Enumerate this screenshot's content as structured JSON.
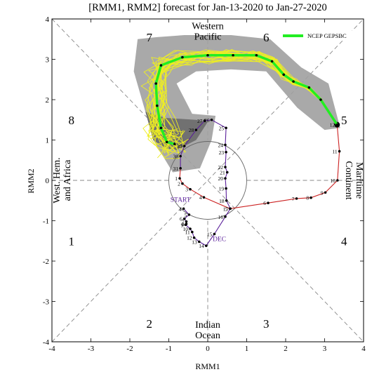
{
  "chart_data": {
    "type": "scatter",
    "title": "[RMM1, RMM2] forecast for Jan-13-2020 to Jan-27-2020",
    "xlabel": "RMM1",
    "ylabel": "RMM2",
    "xlim": [
      -4,
      4
    ],
    "ylim": [
      -4,
      4
    ],
    "x_ticks": [
      "-4",
      "-3",
      "-2",
      "-1",
      "0",
      "1",
      "2",
      "3",
      "4"
    ],
    "y_ticks": [
      "-4",
      "-3",
      "-2",
      "-1",
      "0",
      "1",
      "2",
      "3",
      "4"
    ],
    "phase_numbers": [
      {
        "label": "1",
        "x": -3.5,
        "y": -1.5
      },
      {
        "label": "2",
        "x": -1.5,
        "y": -3.55
      },
      {
        "label": "3",
        "x": 1.5,
        "y": -3.55
      },
      {
        "label": "4",
        "x": 3.5,
        "y": -1.5
      },
      {
        "label": "5",
        "x": 3.5,
        "y": 1.5
      },
      {
        "label": "6",
        "x": 1.5,
        "y": 3.55
      },
      {
        "label": "7",
        "x": -1.5,
        "y": 3.55
      },
      {
        "label": "8",
        "x": -3.5,
        "y": 1.5
      }
    ],
    "regions": {
      "western_pacific": [
        "Western",
        "Pacific"
      ],
      "indian_ocean": [
        "Indian",
        "Ocean"
      ],
      "maritime_continent": [
        "Maritime",
        "Continent"
      ],
      "west_hem_africa": [
        "West. Hem.",
        "and Africa"
      ]
    },
    "legend": {
      "label": "NCEP GEPSBC",
      "position": "top-right",
      "color": "#22ee22"
    },
    "colors": {
      "observed_dec": "#5a1f9a",
      "observed_jan": "#cc2222",
      "ensemble_member": "#eeee22",
      "spread_outer": "#a0a0a0",
      "spread_inner": "#6a6a6a",
      "ensemble_mean": "#22ee22",
      "forecast_markers": "#000000"
    },
    "month_labels": [
      {
        "label": "START",
        "x": -0.7,
        "y": -0.53
      },
      {
        "label": "DEC",
        "x": 0.3,
        "y": -1.5
      }
    ],
    "observed": {
      "dec": [
        {
          "day": "4",
          "x": -0.62,
          "y": -0.7
        },
        {
          "day": "5",
          "x": -0.48,
          "y": -0.85
        },
        {
          "day": "6",
          "x": -0.6,
          "y": -0.95
        },
        {
          "day": "7",
          "x": -0.55,
          "y": -1.02
        },
        {
          "day": "8",
          "x": -0.55,
          "y": -1.08
        },
        {
          "day": "9",
          "x": -0.57,
          "y": -1.1
        },
        {
          "day": "10",
          "x": -0.45,
          "y": -1.2
        },
        {
          "day": "11",
          "x": -0.4,
          "y": -1.28
        },
        {
          "day": "12",
          "x": -0.35,
          "y": -1.42
        },
        {
          "day": "13",
          "x": -0.22,
          "y": -1.52
        },
        {
          "day": "14",
          "x": -0.04,
          "y": -1.62
        },
        {
          "day": "15",
          "x": 0.17,
          "y": -1.33
        },
        {
          "day": "16",
          "x": 0.45,
          "y": -0.9
        },
        {
          "day": "17",
          "x": 0.58,
          "y": -0.7
        },
        {
          "day": "18",
          "x": 0.48,
          "y": -0.5
        },
        {
          "day": "19",
          "x": 0.47,
          "y": -0.2
        },
        {
          "day": "20",
          "x": 0.45,
          "y": 0.05
        },
        {
          "day": "21",
          "x": 0.5,
          "y": 0.2
        },
        {
          "day": "22",
          "x": 0.45,
          "y": 0.33
        },
        {
          "day": "23",
          "x": 0.47,
          "y": 0.7
        },
        {
          "day": "24",
          "x": 0.45,
          "y": 0.88
        },
        {
          "day": "25",
          "x": 0.47,
          "y": 1.3
        },
        {
          "day": "26",
          "x": 0.1,
          "y": 1.5
        },
        {
          "day": "27",
          "x": -0.08,
          "y": 1.48
        },
        {
          "day": "28",
          "x": -0.3,
          "y": 1.25
        },
        {
          "day": "29",
          "x": -0.6,
          "y": 0.85
        },
        {
          "day": "30",
          "x": -0.7,
          "y": 0.6
        },
        {
          "day": "31",
          "x": -0.7,
          "y": 0.3
        }
      ],
      "jan": [
        {
          "day": "1",
          "x": -0.72,
          "y": 0.05
        },
        {
          "day": "2",
          "x": -0.65,
          "y": -0.08
        },
        {
          "day": "3",
          "x": -0.45,
          "y": -0.22
        },
        {
          "day": "4",
          "x": -0.1,
          "y": -0.42
        },
        {
          "day": "5",
          "x": 0.57,
          "y": -0.7
        },
        {
          "day": "6",
          "x": 1.55,
          "y": -0.56
        },
        {
          "day": "7",
          "x": 2.28,
          "y": -0.45
        },
        {
          "day": "8",
          "x": 2.65,
          "y": -0.43
        },
        {
          "day": "9",
          "x": 3.02,
          "y": -0.3
        },
        {
          "day": "10",
          "x": 3.33,
          "y": 0
        },
        {
          "day": "11",
          "x": 3.38,
          "y": 0.72
        },
        {
          "day": "12",
          "x": 3.32,
          "y": 1.38
        }
      ]
    },
    "forecast_mean": [
      {
        "x": 3.32,
        "y": 1.38
      },
      {
        "x": 2.9,
        "y": 2.0
      },
      {
        "x": 2.6,
        "y": 2.3
      },
      {
        "x": 2.2,
        "y": 2.45
      },
      {
        "x": 1.95,
        "y": 2.62
      },
      {
        "x": 1.65,
        "y": 2.95
      },
      {
        "x": 1.25,
        "y": 3.1
      },
      {
        "x": 0.65,
        "y": 3.1
      },
      {
        "x": 0.0,
        "y": 3.1
      },
      {
        "x": -0.65,
        "y": 3.05
      },
      {
        "x": -1.2,
        "y": 2.85
      },
      {
        "x": -1.33,
        "y": 2.4
      },
      {
        "x": -1.3,
        "y": 1.85
      },
      {
        "x": -1.2,
        "y": 1.3
      },
      {
        "x": -1.05,
        "y": 0.95
      },
      {
        "x": -0.85,
        "y": 0.9
      }
    ]
  }
}
